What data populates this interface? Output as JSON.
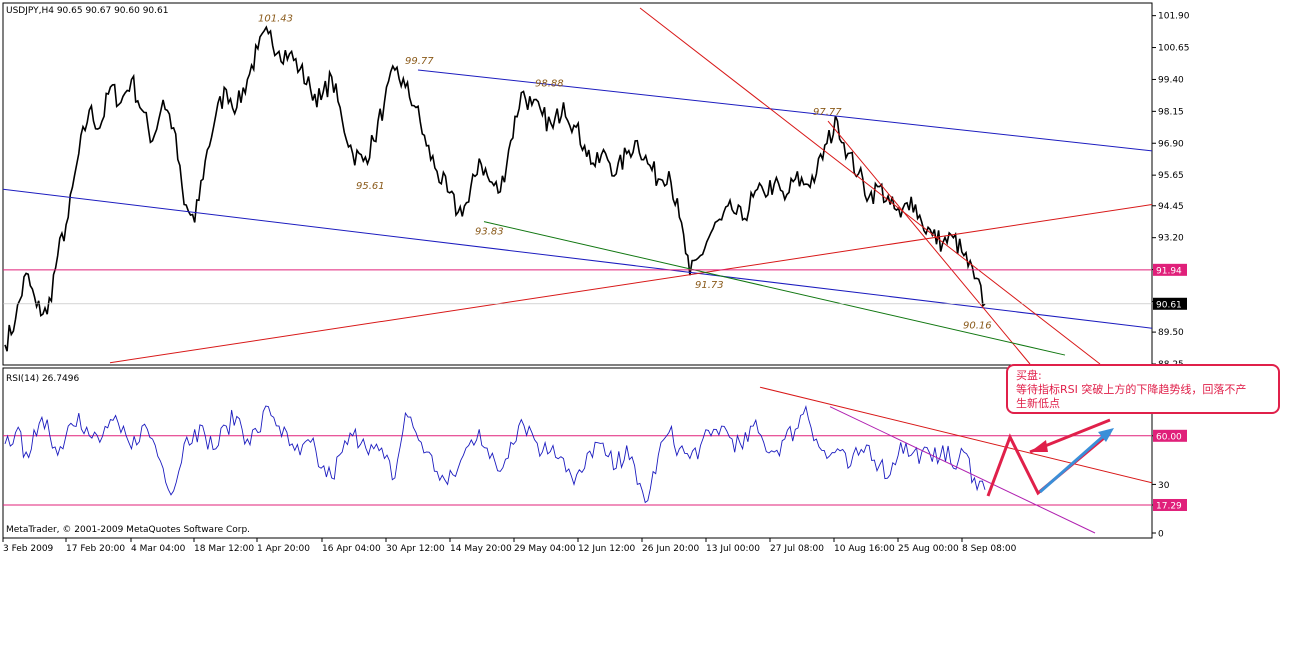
{
  "header": {
    "symbol_text": "USDJPY,H4  90.65 90.67 90.60 90.61",
    "rsi_text": "RSI(14) 26.7496",
    "copyright": "MetaTrader, © 2001-2009 MetaQuotes Software Corp."
  },
  "annotation": {
    "line1": "买盘:",
    "line2": "等待指标RSI 突破上方的下降趋势线，回落不产",
    "line3": "生新低点"
  },
  "colors": {
    "price": "#000000",
    "blue_line": "#1c1cbf",
    "red_line": "#d81818",
    "green_line": "#117711",
    "magenta_line": "#e0207a",
    "rsi_line": "#1c1cbf",
    "annotation_red": "#e0204a",
    "annotation_blue": "#3a8fd8"
  },
  "chart_data": [
    {
      "type": "line",
      "series": [
        {
          "name": "USDJPY,H4",
          "values": [
            89.0,
            90.0,
            91.8,
            90.5,
            90.2,
            92.5,
            94.0,
            96.5,
            98.2,
            97.5,
            99.1,
            98.5,
            99.4,
            98.2,
            97.0,
            98.6,
            97.5,
            94.5,
            93.8,
            96.2,
            98.0,
            99.0,
            98.3,
            99.4,
            100.6,
            101.2,
            100.5,
            100.4,
            99.8,
            99.0,
            98.6,
            99.5,
            97.8,
            96.5,
            96.2,
            97.0,
            98.5,
            99.77,
            99.1,
            98.3,
            96.8,
            95.8,
            95.0,
            94.2,
            94.6,
            96.3,
            95.4,
            95.0,
            97.0,
            98.88,
            98.4,
            98.0,
            97.5,
            98.5,
            97.6,
            96.8,
            96.0,
            96.5,
            95.7,
            96.5,
            97.0,
            96.1,
            95.5,
            95.8,
            94.0,
            91.73,
            92.5,
            93.4,
            93.9,
            94.3,
            93.9,
            94.8,
            95.0,
            95.3,
            94.7,
            95.5,
            95.3,
            95.7,
            96.9,
            97.77,
            96.5,
            95.7,
            94.8,
            95.2,
            94.5,
            94.0,
            94.8,
            93.8,
            93.3,
            93.0,
            93.2,
            92.5,
            91.6,
            90.61
          ]
        }
      ],
      "ylim": [
        88.25,
        102.2
      ],
      "y_ticks": [
        "101.90",
        "100.65",
        "99.40",
        "98.15",
        "96.90",
        "95.65",
        "94.45",
        "93.20",
        "91.95",
        "90.70",
        "89.50",
        "88.25"
      ],
      "price_labels": {
        "current": "90.61",
        "marked": "91.94"
      },
      "level_labels": [
        "101.43",
        "99.77",
        "98.88",
        "97.77",
        "95.61",
        "93.83",
        "91.73",
        "90.16"
      ],
      "x_ticks": [
        "3 Feb 2009",
        "17 Feb 20:00",
        "4 Mar 04:00",
        "18 Mar 12:00",
        "1 Apr 20:00",
        "16 Apr 04:00",
        "30 Apr 12:00",
        "14 May 20:00",
        "29 May 04:00",
        "12 Jun 12:00",
        "26 Jun 20:00",
        "13 Jul 00:00",
        "27 Jul 08:00",
        "10 Aug 16:00",
        "25 Aug 00:00",
        "8 Sep 08:00"
      ],
      "horizontal_level": 91.94
    },
    {
      "type": "line",
      "series": [
        {
          "name": "RSI(14)",
          "values": [
            55,
            62,
            50,
            60,
            70,
            48,
            66,
            74,
            60,
            56,
            70,
            62,
            52,
            66,
            58,
            40,
            26,
            55,
            64,
            60,
            52,
            66,
            72,
            58,
            62,
            78,
            66,
            54,
            48,
            56,
            40,
            34,
            50,
            60,
            58,
            52,
            46,
            34,
            74,
            62,
            50,
            38,
            30,
            40,
            54,
            64,
            46,
            38,
            56,
            70,
            62,
            50,
            54,
            46,
            30,
            40,
            56,
            48,
            40,
            54,
            30,
            20,
            48,
            62,
            52,
            46,
            54,
            60,
            66,
            58,
            52,
            66,
            56,
            50,
            58,
            64,
            78,
            58,
            46,
            52,
            40,
            48,
            54,
            42,
            36,
            56,
            48,
            50,
            44,
            54,
            40,
            50,
            34,
            26.7
          ]
        }
      ],
      "ylim": [
        0,
        100
      ],
      "y_ticks": [
        "60.00",
        "30",
        "17.29",
        "0"
      ],
      "levels": [
        60,
        17.29
      ]
    }
  ]
}
